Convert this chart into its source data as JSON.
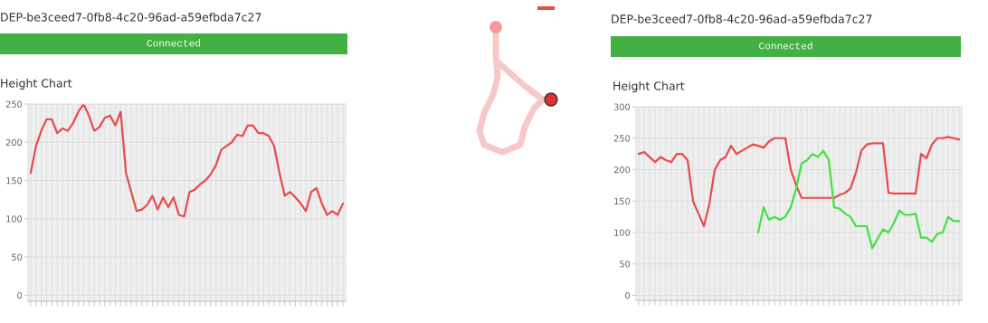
{
  "chart_data": [
    {
      "type": "other",
      "title": "DEP-be3ceed7-0fb8-4c20-96ad-a59efbda7c27",
      "annotations": [
        "Connected"
      ]
    },
    {
      "type": "line",
      "title": "Height Chart",
      "categories": [
        null,
        null,
        null,
        null,
        null,
        null,
        null,
        null,
        null,
        null,
        null,
        null,
        null,
        null,
        null,
        null,
        null,
        null,
        null,
        null,
        null,
        null,
        null,
        null,
        null,
        null,
        null,
        null,
        null,
        null,
        null,
        null,
        null,
        null,
        null,
        null,
        null,
        null,
        null,
        null,
        null,
        null,
        null,
        null,
        null,
        null,
        null,
        null,
        null,
        null,
        null,
        null,
        null,
        null,
        null,
        null,
        null,
        null,
        null,
        null
      ],
      "series": [
        {
          "color": "#e84c4c",
          "values": [
            160,
            195,
            215,
            230,
            230,
            212,
            218,
            215,
            225,
            240,
            250,
            235,
            215,
            220,
            232,
            235,
            222,
            240,
            160,
            135,
            110,
            112,
            118,
            130,
            112,
            128,
            115,
            128,
            105,
            103,
            135,
            138,
            145,
            150,
            158,
            170,
            190,
            195,
            200,
            210,
            208,
            222,
            222,
            212,
            212,
            208,
            195,
            160,
            130,
            135,
            128,
            120,
            110,
            135,
            140,
            120,
            105,
            110,
            105,
            120
          ]
        }
      ],
      "ylim": [
        -8,
        250
      ],
      "yticks": [
        0,
        50,
        100,
        150,
        200,
        250
      ],
      "grid": true,
      "tick_labels": "y"
    },
    {
      "type": "other",
      "title": "DEP-be3ceed7-0fb8-4c20-96ad-a59efbda7c27",
      "annotations": [
        "Connected"
      ]
    },
    {
      "type": "line",
      "title": "Height Chart",
      "categories": [
        null,
        null,
        null,
        null,
        null,
        null,
        null,
        null,
        null,
        null,
        null,
        null,
        null,
        null,
        null,
        null,
        null,
        null,
        null,
        null,
        null,
        null,
        null,
        null,
        null,
        null,
        null,
        null,
        null,
        null,
        null,
        null,
        null,
        null,
        null,
        null,
        null,
        null,
        null,
        null,
        null,
        null,
        null,
        null,
        null,
        null,
        null,
        null,
        null,
        null,
        null,
        null,
        null,
        null,
        null,
        null,
        null,
        null,
        null,
        null
      ],
      "series": [
        {
          "color": "#e84c4c",
          "values": [
            225,
            228,
            220,
            212,
            220,
            215,
            212,
            225,
            225,
            215,
            150,
            130,
            110,
            145,
            200,
            215,
            220,
            238,
            225,
            230,
            235,
            240,
            238,
            235,
            245,
            250,
            250,
            250,
            200,
            175,
            155,
            155,
            155,
            155,
            155,
            155,
            155,
            160,
            163,
            170,
            195,
            230,
            240,
            242,
            242,
            242,
            163,
            162,
            162,
            162,
            162,
            162,
            225,
            218,
            240,
            250,
            250,
            252,
            250,
            248
          ]
        },
        {
          "color": "#44e044",
          "values": [
            null,
            null,
            null,
            null,
            null,
            null,
            null,
            null,
            null,
            null,
            null,
            null,
            null,
            null,
            null,
            null,
            null,
            null,
            null,
            null,
            null,
            null,
            100,
            140,
            120,
            125,
            120,
            125,
            140,
            170,
            210,
            215,
            225,
            220,
            230,
            215,
            140,
            138,
            130,
            125,
            110,
            110,
            110,
            75,
            90,
            105,
            100,
            115,
            135,
            128,
            128,
            130,
            92,
            92,
            85,
            98,
            100,
            125,
            118,
            118
          ]
        }
      ],
      "ylim": [
        -8,
        300
      ],
      "yticks": [
        0,
        50,
        100,
        150,
        200,
        250,
        300
      ],
      "grid": true,
      "tick_labels": "y"
    }
  ]
}
